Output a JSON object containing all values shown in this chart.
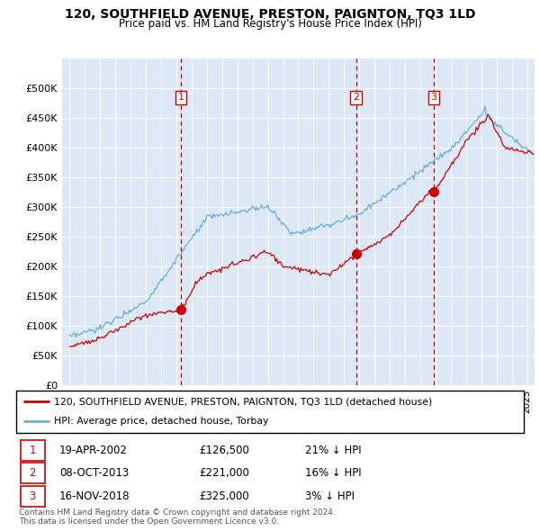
{
  "title": "120, SOUTHFIELD AVENUE, PRESTON, PAIGNTON, TQ3 1LD",
  "subtitle": "Price paid vs. HM Land Registry's House Price Index (HPI)",
  "legend_line1": "120, SOUTHFIELD AVENUE, PRESTON, PAIGNTON, TQ3 1LD (detached house)",
  "legend_line2": "HPI: Average price, detached house, Torbay",
  "footnote1": "Contains HM Land Registry data © Crown copyright and database right 2024.",
  "footnote2": "This data is licensed under the Open Government Licence v3.0.",
  "transactions": [
    {
      "num": 1,
      "date": "19-APR-2002",
      "price": "£126,500",
      "pct": "21% ↓ HPI",
      "x_year": 2002.3
    },
    {
      "num": 2,
      "date": "08-OCT-2013",
      "price": "£221,000",
      "pct": "16% ↓ HPI",
      "x_year": 2013.78
    },
    {
      "num": 3,
      "date": "16-NOV-2018",
      "price": "£325,000",
      "pct": "3% ↓ HPI",
      "x_year": 2018.88
    }
  ],
  "hpi_color": "#6baed6",
  "price_color": "#cc0000",
  "vline_color": "#cc0000",
  "plot_bg": "#dce8f5",
  "ylim": [
    0,
    550000
  ],
  "xlim_start": 1994.5,
  "xlim_end": 2025.5,
  "yticks": [
    0,
    50000,
    100000,
    150000,
    200000,
    250000,
    300000,
    350000,
    400000,
    450000,
    500000
  ],
  "ylabels": [
    "£0",
    "£50K",
    "£100K",
    "£150K",
    "£200K",
    "£250K",
    "£300K",
    "£350K",
    "£400K",
    "£450K",
    "£500K"
  ]
}
